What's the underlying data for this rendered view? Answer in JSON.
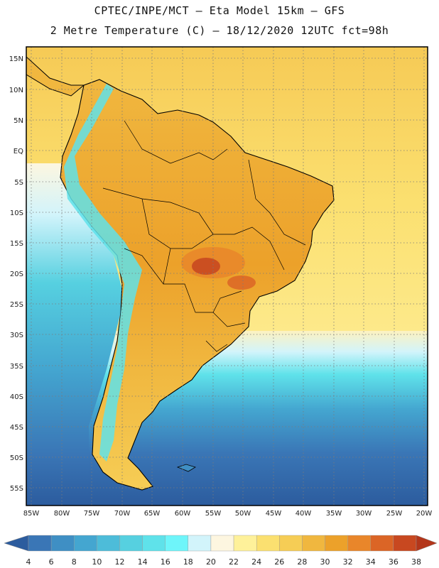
{
  "header": {
    "line1": "CPTEC/INPE/MCT –  Eta Model 15km – GFS",
    "line2": "2 Metre Temperature (C) – 18/12/2020 12UTC fct=98h"
  },
  "map": {
    "lat_labels": [
      "15N",
      "10N",
      "5N",
      "EQ",
      "5S",
      "10S",
      "15S",
      "20S",
      "25S",
      "30S",
      "35S",
      "40S",
      "45S",
      "50S",
      "55S"
    ],
    "lon_labels": [
      "85W",
      "80W",
      "75W",
      "70W",
      "65W",
      "60W",
      "55W",
      "50W",
      "45W",
      "40W",
      "35W",
      "30W",
      "25W",
      "20W"
    ]
  },
  "colorbar": {
    "values": [
      "4",
      "6",
      "8",
      "10",
      "12",
      "14",
      "16",
      "18",
      "20",
      "22",
      "24",
      "26",
      "28",
      "30",
      "32",
      "34",
      "36",
      "38"
    ],
    "colors": [
      "#2c5c9e",
      "#3a76b6",
      "#3f8fc4",
      "#44a6d0",
      "#4dbcd9",
      "#56d0e0",
      "#5fe2ea",
      "#6ef5fa",
      "#d2f4fb",
      "#fdf6e0",
      "#fef19a",
      "#fbe070",
      "#f6cd55",
      "#f0b73f",
      "#eca12a",
      "#e9862a",
      "#db6526",
      "#c84820",
      "#b3361a"
    ]
  }
}
